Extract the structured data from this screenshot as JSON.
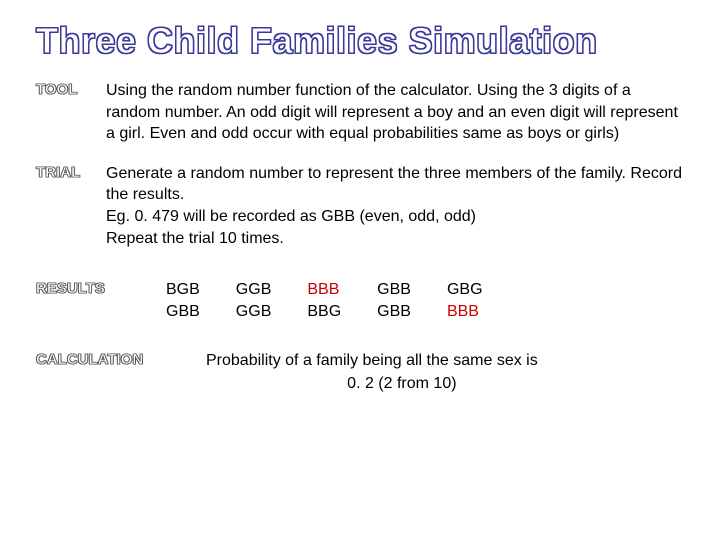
{
  "title": "Three Child Families Simulation",
  "labels": {
    "tool": "TOOL",
    "trial": "TRIAL",
    "results": "RESULTS",
    "calculation": "CALCULATION"
  },
  "tool_text": "Using the random number function of the calculator. Using the 3 digits of a random number.  An odd digit will represent a boy and an even digit will represent a girl. Even and odd occur with equal probabilities same as boys or girls)",
  "trial_text_l1": "Generate a random number to represent the three members of the family. Record the results.",
  "trial_text_l2": "Eg. 0. 479 will be recorded as GBB (even, odd, odd)",
  "trial_text_l3": "Repeat the trial 10 times.",
  "results": {
    "columns": [
      {
        "rows": [
          {
            "text": "BGB",
            "highlight": false
          },
          {
            "text": "GBB",
            "highlight": false
          }
        ]
      },
      {
        "rows": [
          {
            "text": "GGB",
            "highlight": false
          },
          {
            "text": "GGB",
            "highlight": false
          }
        ]
      },
      {
        "rows": [
          {
            "text": "BBB",
            "highlight": true
          },
          {
            "text": "BBG",
            "highlight": false
          }
        ]
      },
      {
        "rows": [
          {
            "text": "GBB",
            "highlight": false
          },
          {
            "text": "GBB",
            "highlight": false
          }
        ]
      },
      {
        "rows": [
          {
            "text": "GBG",
            "highlight": false
          },
          {
            "text": "BBB",
            "highlight": true
          }
        ]
      }
    ],
    "highlight_color": "#cc0000",
    "normal_color": "#000000"
  },
  "calculation_l1": "Probability of a family being all the same sex is",
  "calculation_l2": "0. 2 (2 from 10)",
  "colors": {
    "background": "#ffffff",
    "title_outline": "#3a3a99",
    "label_outline": "#555555",
    "text": "#000000"
  }
}
